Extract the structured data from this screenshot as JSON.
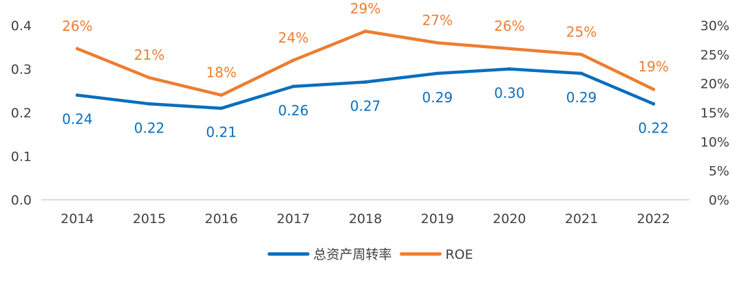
{
  "chart_data": {
    "type": "line",
    "title": "",
    "categories": [
      "2014",
      "2015",
      "2016",
      "2017",
      "2018",
      "2019",
      "2020",
      "2021",
      "2022"
    ],
    "series": [
      {
        "name": "总资产周转率",
        "axis": "left",
        "color": "#0a6ebd",
        "values": [
          0.24,
          0.22,
          0.21,
          0.26,
          0.27,
          0.29,
          0.3,
          0.29,
          0.22
        ],
        "labels": [
          "0.24",
          "0.22",
          "0.21",
          "0.26",
          "0.27",
          "0.29",
          "0.30",
          "0.29",
          "0.22"
        ]
      },
      {
        "name": "ROE",
        "axis": "right",
        "color": "#ed7d31",
        "values": [
          26,
          21,
          18,
          24,
          29,
          27,
          26,
          25,
          19
        ],
        "labels": [
          "26%",
          "21%",
          "18%",
          "24%",
          "29%",
          "27%",
          "26%",
          "25%",
          "19%"
        ]
      }
    ],
    "y_left": {
      "range": [
        0,
        0.4
      ],
      "ticks": [
        "0.0",
        "0.1",
        "0.2",
        "0.3",
        "0.4"
      ]
    },
    "y_right": {
      "range": [
        0,
        30
      ],
      "ticks": [
        "0%",
        "5%",
        "10%",
        "15%",
        "20%",
        "25%",
        "30%"
      ]
    },
    "xlabel": "",
    "grid": false,
    "legend": {
      "position": "bottom-center",
      "entries": [
        "总资产周转率",
        "ROE"
      ]
    }
  }
}
